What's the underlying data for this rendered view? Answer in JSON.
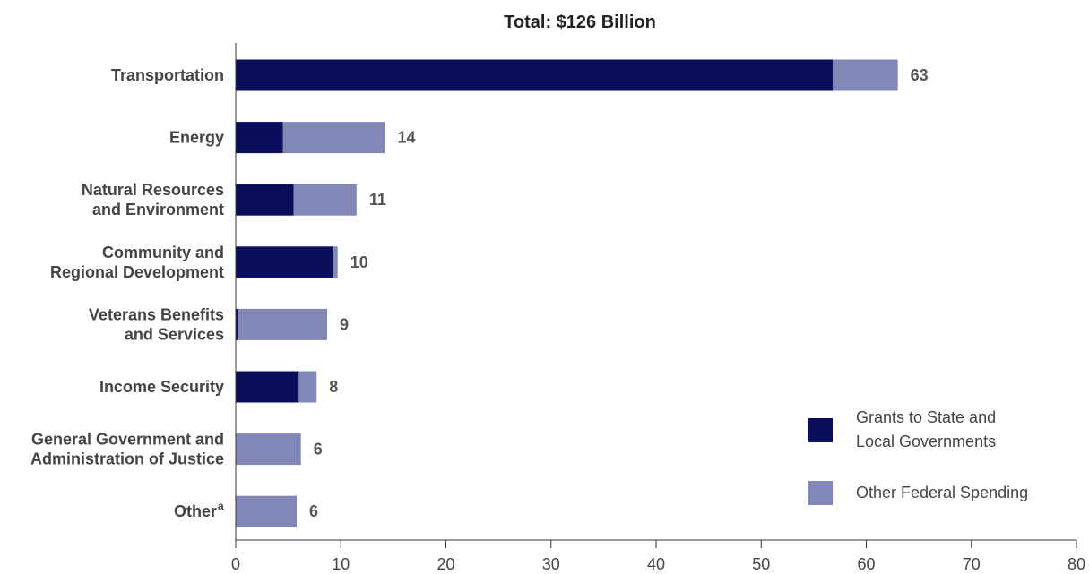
{
  "chart_data": {
    "type": "bar",
    "orientation": "horizontal",
    "stacked": true,
    "title": "Total: $126 Billion",
    "categories": [
      [
        "Transportation"
      ],
      [
        "Energy"
      ],
      [
        "Natural Resources",
        "and Environment"
      ],
      [
        "Community and",
        "Regional Development"
      ],
      [
        "Veterans Benefits",
        "and Services"
      ],
      [
        "Income Security"
      ],
      [
        "General Government and",
        "Administration of Justice"
      ],
      [
        "Other"
      ]
    ],
    "category_superscripts": [
      "",
      "",
      "",
      "",
      "",
      "",
      "",
      "a"
    ],
    "series": [
      {
        "name": "Grants to State and Local Governments",
        "legend_lines": [
          "Grants to State and",
          "Local Governments"
        ],
        "color": "#0a0f5c",
        "values": [
          56.8,
          4.5,
          5.5,
          9.3,
          0.2,
          6.0,
          0,
          0
        ]
      },
      {
        "name": "Other Federal Spending",
        "legend_lines": [
          "Other Federal Spending"
        ],
        "color": "#8188b7",
        "values": [
          6.2,
          9.7,
          6.0,
          0.4,
          8.5,
          1.7,
          6.2,
          5.8
        ]
      }
    ],
    "totals": [
      "63",
      "14",
      "11",
      "10",
      "9",
      "8",
      "6",
      "6"
    ],
    "xlim": [
      0,
      80
    ],
    "xticks": [
      0,
      10,
      20,
      30,
      40,
      50,
      60,
      70,
      80
    ],
    "xlabel": "",
    "ylabel": "",
    "grid": false,
    "legend_position": "bottom-right"
  }
}
